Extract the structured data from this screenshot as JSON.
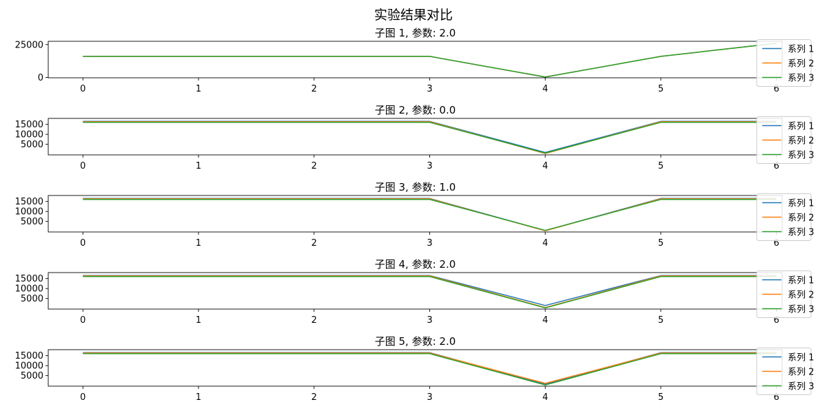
{
  "figure": {
    "suptitle": "实验结果对比"
  },
  "colors": {
    "series_1": "#1f77b4",
    "series_2": "#ff7f0e",
    "series_3": "#2ca02c"
  },
  "chart_data": [
    {
      "type": "line",
      "title": "子图 1, 参数: 2.0",
      "xlabel": "",
      "ylabel": "",
      "x": [
        0,
        1,
        2,
        3,
        4,
        5,
        6
      ],
      "xlim": [
        -0.3,
        6.05
      ],
      "ylim": [
        -300,
        27500
      ],
      "yticks": [
        0,
        25000
      ],
      "legend_loc": "right",
      "series": [
        {
          "name": "系列 1",
          "values": [
            16000,
            16000,
            16000,
            16000,
            300,
            16000,
            26000
          ]
        },
        {
          "name": "系列 2",
          "values": [
            16000,
            16000,
            16000,
            16000,
            300,
            16000,
            26000
          ]
        },
        {
          "name": "系列 3",
          "values": [
            16000,
            16000,
            16000,
            16000,
            300,
            16000,
            26000
          ]
        }
      ]
    },
    {
      "type": "line",
      "title": "子图 2, 参数: 0.0",
      "xlabel": "",
      "ylabel": "",
      "x": [
        0,
        1,
        2,
        3,
        4,
        5,
        6
      ],
      "xlim": [
        -0.3,
        6.05
      ],
      "ylim": [
        -300,
        18000
      ],
      "yticks": [
        5000,
        10000,
        15000
      ],
      "legend_loc": "right",
      "series": [
        {
          "name": "系列 1",
          "values": [
            16500,
            16500,
            16500,
            16500,
            900,
            16500,
            16500
          ]
        },
        {
          "name": "系列 2",
          "values": [
            16300,
            16300,
            16300,
            16300,
            400,
            16300,
            16300
          ]
        },
        {
          "name": "系列 3",
          "values": [
            16000,
            16000,
            16000,
            16000,
            600,
            16000,
            16000
          ]
        }
      ]
    },
    {
      "type": "line",
      "title": "子图 3, 参数: 1.0",
      "xlabel": "",
      "ylabel": "",
      "x": [
        0,
        1,
        2,
        3,
        4,
        5,
        6
      ],
      "xlim": [
        -0.3,
        6.05
      ],
      "ylim": [
        -300,
        18000
      ],
      "yticks": [
        5000,
        10000,
        15000
      ],
      "legend_loc": "right",
      "series": [
        {
          "name": "系列 1",
          "values": [
            16500,
            16500,
            16500,
            16500,
            400,
            16500,
            16500
          ]
        },
        {
          "name": "系列 2",
          "values": [
            16300,
            16300,
            16300,
            16300,
            300,
            16300,
            16300
          ]
        },
        {
          "name": "系列 3",
          "values": [
            16000,
            16000,
            16000,
            16000,
            500,
            16000,
            16000
          ]
        }
      ]
    },
    {
      "type": "line",
      "title": "子图 4, 参数: 2.0",
      "xlabel": "",
      "ylabel": "",
      "x": [
        0,
        1,
        2,
        3,
        4,
        5,
        6
      ],
      "xlim": [
        -0.3,
        6.05
      ],
      "ylim": [
        -300,
        18000
      ],
      "yticks": [
        5000,
        10000,
        15000
      ],
      "legend_loc": "right",
      "series": [
        {
          "name": "系列 1",
          "values": [
            16500,
            16500,
            16500,
            16500,
            1500,
            16500,
            16500
          ]
        },
        {
          "name": "系列 2",
          "values": [
            16300,
            16300,
            16300,
            16300,
            500,
            16300,
            16300
          ]
        },
        {
          "name": "系列 3",
          "values": [
            16000,
            16000,
            16000,
            16000,
            300,
            16000,
            16000
          ]
        }
      ]
    },
    {
      "type": "line",
      "title": "子图 5, 参数: 2.0",
      "xlabel": "",
      "ylabel": "",
      "x": [
        0,
        1,
        2,
        3,
        4,
        5,
        6
      ],
      "xlim": [
        -0.3,
        6.05
      ],
      "ylim": [
        -300,
        18000
      ],
      "yticks": [
        5000,
        10000,
        15000
      ],
      "legend_loc": "right",
      "series": [
        {
          "name": "系列 1",
          "values": [
            16500,
            16500,
            16500,
            16500,
            700,
            16500,
            16500
          ]
        },
        {
          "name": "系列 2",
          "values": [
            16300,
            16300,
            16300,
            16300,
            1100,
            16300,
            16300
          ]
        },
        {
          "name": "系列 3",
          "values": [
            16000,
            16000,
            16000,
            16000,
            300,
            16000,
            16000
          ]
        }
      ]
    }
  ]
}
